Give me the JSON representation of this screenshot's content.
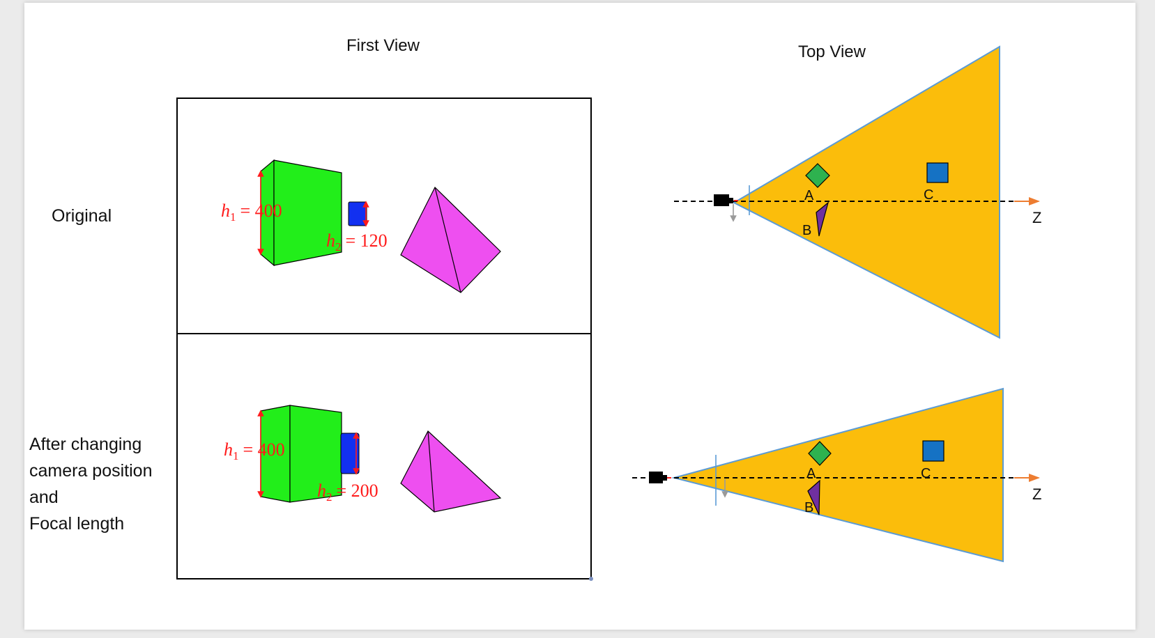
{
  "headings": {
    "first_view": "First View",
    "top_view": "Top View"
  },
  "rows": {
    "original": "Original",
    "after_lines": [
      "After changing",
      "camera position",
      "and",
      "Focal length"
    ]
  },
  "annotations": {
    "h_symbol": "h",
    "h1_sub": "1",
    "h2_sub": "2",
    "h1_value": "= 400",
    "h2_value_top": "= 120",
    "h2_value_bottom": "= 200"
  },
  "top_view_labels": {
    "a": "A",
    "b": "B",
    "c": "C",
    "z_axis": "Z"
  },
  "colors": {
    "green_box": "#22ee1a",
    "blue_box": "#1230f0",
    "pyramid": "#ee4ff0",
    "frustum_fill": "#fbbd0b",
    "frustum_edge": "#5b9bd5",
    "diamond": "#2eb24f",
    "square": "#1572c4",
    "triangle": "#7030a0",
    "measure_red": "#ff1a1a",
    "axis_arrow": "#ed7d31"
  }
}
